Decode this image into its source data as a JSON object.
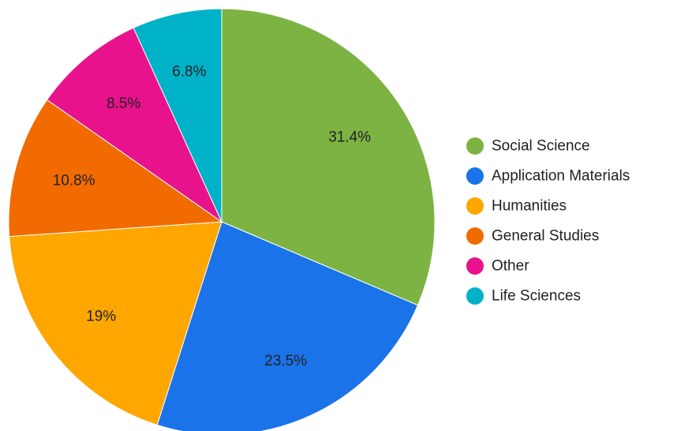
{
  "chart_data": {
    "type": "pie",
    "title": "",
    "legend_position": "right",
    "slices": [
      {
        "name": "Social Science",
        "value": 31.4,
        "label": "31.4%",
        "color": "#7cb342"
      },
      {
        "name": "Application Materials",
        "value": 23.5,
        "label": "23.5%",
        "color": "#1a73e8"
      },
      {
        "name": "Humanities",
        "value": 19.0,
        "label": "19%",
        "color": "#ffa600"
      },
      {
        "name": "General Studies",
        "value": 10.8,
        "label": "10.8%",
        "color": "#f26b00"
      },
      {
        "name": "Other",
        "value": 8.5,
        "label": "8.5%",
        "color": "#e8128c"
      },
      {
        "name": "Life Sciences",
        "value": 6.8,
        "label": "6.8%",
        "color": "#00b2c8"
      }
    ]
  }
}
